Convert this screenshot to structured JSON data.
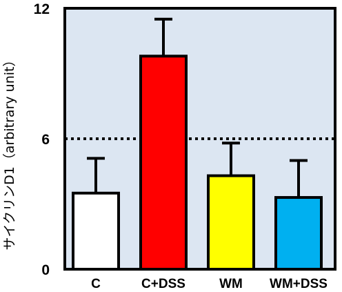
{
  "chart_data": {
    "type": "bar",
    "ylabel": "サイクリンD1（arbitrary unit）",
    "ylim": [
      0,
      12
    ],
    "yticks": [
      0,
      6,
      12
    ],
    "reference_line": {
      "y": 6,
      "style": "dotted"
    },
    "categories": [
      "C",
      "C+DSS",
      "WM",
      "WM+DSS"
    ],
    "values": [
      3.5,
      9.8,
      4.3,
      3.3
    ],
    "errors": [
      1.6,
      1.7,
      1.5,
      1.7
    ],
    "colors": [
      "#ffffff",
      "#ff0000",
      "#ffff00",
      "#00b0f0"
    ],
    "plot_background": "#dce6f2"
  }
}
